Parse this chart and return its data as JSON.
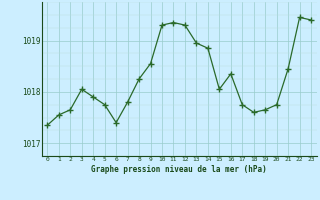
{
  "x": [
    0,
    1,
    2,
    3,
    4,
    5,
    6,
    7,
    8,
    9,
    10,
    11,
    12,
    13,
    14,
    15,
    16,
    17,
    18,
    19,
    20,
    21,
    22,
    23
  ],
  "y": [
    1017.35,
    1017.55,
    1017.65,
    1018.05,
    1017.9,
    1017.75,
    1017.4,
    1017.8,
    1018.25,
    1018.55,
    1019.3,
    1019.35,
    1019.3,
    1018.95,
    1018.85,
    1018.05,
    1018.35,
    1017.75,
    1017.6,
    1017.65,
    1017.75,
    1018.45,
    1019.45,
    1019.4
  ],
  "line_color": "#2a6a2a",
  "marker": "+",
  "marker_size": 4,
  "bg_color": "#cceeff",
  "grid_major_color": "#99cccc",
  "grid_minor_color": "#bbdddd",
  "xlabel": "Graphe pression niveau de la mer (hPa)",
  "xlabel_color": "#1a4a1a",
  "tick_color": "#1a4a1a",
  "ylim": [
    1016.75,
    1019.75
  ],
  "yticks": [
    1017,
    1018,
    1019
  ],
  "xlim": [
    -0.5,
    23.5
  ],
  "xticks": [
    0,
    1,
    2,
    3,
    4,
    5,
    6,
    7,
    8,
    9,
    10,
    11,
    12,
    13,
    14,
    15,
    16,
    17,
    18,
    19,
    20,
    21,
    22,
    23
  ],
  "figsize": [
    3.2,
    2.0
  ],
  "dpi": 100
}
